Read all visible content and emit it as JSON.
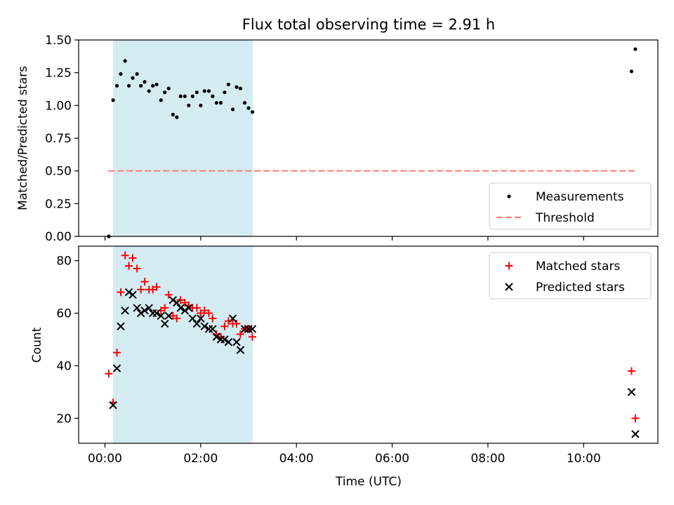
{
  "chart_data": [
    {
      "type": "scatter",
      "panel": "top",
      "title": "Flux total observing time = 2.91 h",
      "xlabel": "",
      "ylabel": "Matched/Predicted stars",
      "x_unit": "hours UTC",
      "xlim": [
        -0.55,
        11.55
      ],
      "ylim": [
        0.0,
        1.5
      ],
      "yticks": [
        0.0,
        0.25,
        0.5,
        0.75,
        1.0,
        1.25,
        1.5
      ],
      "ytick_labels": [
        "0.00",
        "0.25",
        "0.50",
        "0.75",
        "1.00",
        "1.25",
        "1.50"
      ],
      "xticks": [
        0,
        2,
        4,
        6,
        8,
        10
      ],
      "shaded_span": {
        "x": [
          0.17,
          3.09
        ],
        "color": "#add8e6"
      },
      "threshold": {
        "name": "Threshold",
        "y": 0.5,
        "x": [
          0.07,
          11.1
        ],
        "color": "#ff7f7f"
      },
      "legend": {
        "position": "lower-right",
        "entries": [
          "Measurements",
          "Threshold"
        ]
      },
      "series": [
        {
          "name": "Measurements",
          "color": "#000000",
          "marker": "dot",
          "x": [
            0.08,
            0.17,
            0.25,
            0.33,
            0.42,
            0.5,
            0.58,
            0.67,
            0.75,
            0.83,
            0.92,
            1.0,
            1.08,
            1.17,
            1.25,
            1.33,
            1.42,
            1.5,
            1.58,
            1.67,
            1.75,
            1.83,
            1.92,
            2.0,
            2.08,
            2.17,
            2.25,
            2.33,
            2.42,
            2.5,
            2.58,
            2.67,
            2.75,
            2.83,
            2.92,
            3.0,
            3.08,
            11.0,
            11.08
          ],
          "y": [
            0.0,
            1.04,
            1.15,
            1.24,
            1.34,
            1.15,
            1.21,
            1.24,
            1.15,
            1.18,
            1.11,
            1.15,
            1.16,
            1.04,
            1.1,
            1.13,
            0.93,
            0.91,
            1.07,
            1.07,
            1.0,
            1.07,
            1.1,
            1.0,
            1.11,
            1.11,
            1.07,
            1.02,
            1.02,
            1.1,
            1.16,
            0.97,
            1.14,
            1.13,
            1.02,
            0.98,
            0.95,
            1.26,
            1.43
          ]
        }
      ]
    },
    {
      "type": "scatter",
      "panel": "bottom",
      "title": "",
      "xlabel": "Time (UTC)",
      "ylabel": "Count",
      "x_unit": "hours UTC",
      "xlim": [
        -0.55,
        11.55
      ],
      "ylim": [
        10.5,
        85.5
      ],
      "yticks": [
        20,
        40,
        60,
        80
      ],
      "ytick_labels": [
        "20",
        "40",
        "60",
        "80"
      ],
      "xticks": [
        0,
        2,
        4,
        6,
        8,
        10
      ],
      "xtick_labels": [
        "00:00",
        "02:00",
        "04:00",
        "06:00",
        "08:00",
        "10:00"
      ],
      "shaded_span": {
        "x": [
          0.17,
          3.09
        ],
        "color": "#add8e6"
      },
      "legend": {
        "position": "top-right",
        "entries": [
          "Matched stars",
          "Predicted stars"
        ]
      },
      "series": [
        {
          "name": "Matched stars",
          "color": "#ff0000",
          "marker": "plus",
          "x": [
            0.08,
            0.17,
            0.25,
            0.33,
            0.42,
            0.5,
            0.58,
            0.67,
            0.75,
            0.83,
            0.92,
            1.0,
            1.08,
            1.17,
            1.25,
            1.33,
            1.42,
            1.5,
            1.58,
            1.67,
            1.75,
            1.83,
            1.92,
            2.0,
            2.08,
            2.17,
            2.25,
            2.33,
            2.42,
            2.5,
            2.58,
            2.67,
            2.75,
            2.83,
            2.92,
            3.0,
            3.08,
            11.0,
            11.08
          ],
          "y": [
            37,
            26,
            45,
            68,
            82,
            78,
            81,
            77,
            69,
            72,
            69,
            69,
            70,
            61,
            62,
            67,
            59,
            58,
            65,
            64,
            63,
            62,
            62,
            60,
            61,
            60,
            58,
            52,
            51,
            55,
            57,
            56,
            56,
            52,
            54,
            54,
            51,
            38,
            20
          ]
        },
        {
          "name": "Predicted stars",
          "color": "#000000",
          "marker": "x",
          "x": [
            0.17,
            0.25,
            0.33,
            0.42,
            0.5,
            0.58,
            0.67,
            0.75,
            0.83,
            0.92,
            1.0,
            1.08,
            1.17,
            1.25,
            1.33,
            1.42,
            1.5,
            1.58,
            1.67,
            1.75,
            1.83,
            1.92,
            2.0,
            2.08,
            2.17,
            2.25,
            2.33,
            2.42,
            2.5,
            2.58,
            2.67,
            2.75,
            2.83,
            2.92,
            3.0,
            3.08,
            11.0,
            11.08
          ],
          "y": [
            25,
            39,
            55,
            61,
            68,
            67,
            62,
            60,
            61,
            62,
            60,
            60,
            59,
            56,
            59,
            65,
            64,
            62,
            61,
            62,
            58,
            56,
            58,
            55,
            54,
            54,
            51,
            50,
            50,
            49,
            58,
            49,
            46,
            54,
            54,
            54,
            30,
            14
          ]
        }
      ]
    }
  ]
}
